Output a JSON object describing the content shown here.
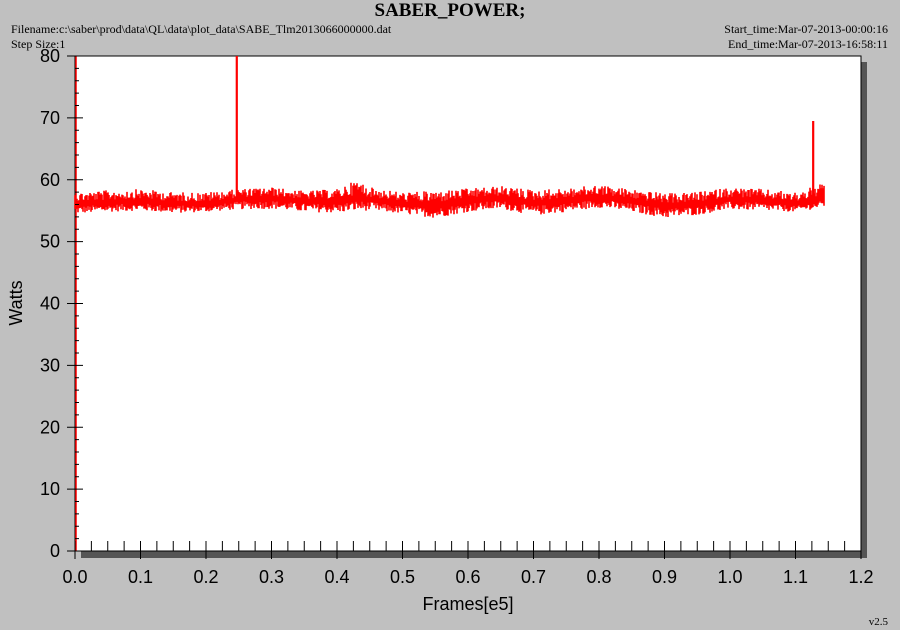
{
  "header": {
    "title": "SABER_POWER;",
    "filename": "Filename:c:\\saber\\prod\\data\\QL\\data\\plot_data\\SABE_Tlm2013066000000.dat",
    "step_size": "Step Size:1",
    "start_time": "Start_time:Mar-07-2013-00:00:16",
    "end_time": "End_time:Mar-07-2013-16:58:11",
    "version": "v2.5"
  },
  "colors": {
    "background": "#c0c0c0",
    "plot_area": "#ffffff",
    "series": "#ff0000",
    "axis": "#000000"
  },
  "chart_data": {
    "type": "line",
    "title": "SABER_POWER;",
    "xlabel": "Frames[e5]",
    "ylabel": "Watts",
    "xlim": [
      0.0,
      1.2
    ],
    "ylim": [
      0,
      80
    ],
    "xticks": [
      "0.0",
      "0.1",
      "0.2",
      "0.3",
      "0.4",
      "0.5",
      "0.6",
      "0.7",
      "0.8",
      "0.9",
      "1.0",
      "1.1",
      "1.2"
    ],
    "yticks": [
      "0",
      "10",
      "20",
      "30",
      "40",
      "50",
      "60",
      "70",
      "80"
    ],
    "grid": false,
    "series": [
      {
        "color": "#ff0000",
        "band": {
          "x": [
            0.0,
            0.05,
            0.1,
            0.15,
            0.2,
            0.25,
            0.3,
            0.35,
            0.4,
            0.43,
            0.45,
            0.5,
            0.55,
            0.6,
            0.65,
            0.7,
            0.75,
            0.8,
            0.85,
            0.9,
            0.95,
            1.0,
            1.05,
            1.1,
            1.145
          ],
          "center": [
            56.0,
            56.3,
            56.5,
            56.2,
            56.0,
            56.8,
            57.0,
            56.5,
            56.5,
            57.0,
            56.8,
            56.0,
            55.8,
            56.6,
            57.0,
            56.2,
            56.6,
            57.2,
            56.5,
            55.8,
            56.0,
            56.8,
            56.6,
            56.0,
            57.0
          ],
          "low": [
            54.5,
            54.8,
            55.0,
            54.6,
            54.8,
            55.2,
            55.3,
            54.8,
            54.6,
            55.0,
            55.0,
            54.5,
            53.8,
            54.8,
            55.3,
            54.2,
            54.8,
            55.5,
            54.8,
            53.8,
            54.3,
            55.2,
            55.0,
            54.8,
            55.5
          ],
          "high": [
            58.0,
            58.3,
            58.5,
            58.0,
            58.0,
            58.5,
            58.8,
            58.2,
            58.5,
            60.0,
            58.8,
            58.0,
            58.2,
            58.6,
            59.0,
            58.4,
            58.6,
            59.2,
            58.5,
            57.8,
            58.0,
            58.8,
            58.5,
            58.0,
            59.5
          ]
        },
        "spikes": [
          {
            "x": 0.247,
            "y": 80
          },
          {
            "x": 1.127,
            "y": 69.5
          }
        ]
      }
    ]
  }
}
